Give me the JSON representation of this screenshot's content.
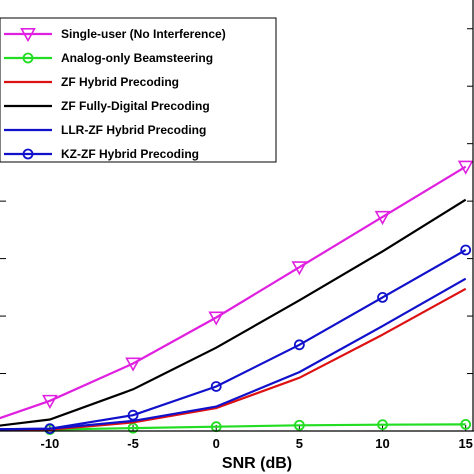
{
  "chart_data": {
    "type": "line",
    "xlabel": "SNR (dB)",
    "ylabel": "",
    "title": "",
    "xlim": [
      -13,
      15.5
    ],
    "ylim": [
      0,
      15
    ],
    "xticks": [
      -10,
      -5,
      0,
      5,
      10,
      15
    ],
    "xtick_labels": [
      "-10",
      "-5",
      "0",
      "5",
      "10",
      "15"
    ],
    "ytick_values": [
      2,
      4,
      6,
      8,
      10,
      12,
      14
    ],
    "grid": false,
    "legend_position": "top-left",
    "x": [
      -15,
      -10,
      -5,
      0,
      5,
      10,
      15
    ],
    "series": [
      {
        "name": "Single-user (No Interference)",
        "color": "#e020e0",
        "marker": "triangle-down",
        "values": [
          0.05,
          1.05,
          2.35,
          3.95,
          5.7,
          7.45,
          9.2
        ]
      },
      {
        "name": "Analog-only Beamsteering",
        "color": "#22dd22",
        "marker": "circle",
        "values": [
          0.05,
          0.05,
          0.1,
          0.15,
          0.2,
          0.22,
          0.23
        ]
      },
      {
        "name": "ZF Hybrid Precoding",
        "color": "#dd1111",
        "marker": "none",
        "values": [
          0.05,
          0.05,
          0.3,
          0.8,
          1.85,
          3.35,
          4.95
        ]
      },
      {
        "name": "ZF Fully-Digital Precoding",
        "color": "#000000",
        "marker": "none",
        "values": [
          0.05,
          0.4,
          1.45,
          2.9,
          4.55,
          6.25,
          8.05
        ]
      },
      {
        "name": "LLR-ZF Hybrid Precoding",
        "color": "#1111cc",
        "marker": "none",
        "values": [
          0.05,
          0.08,
          0.35,
          0.85,
          2.05,
          3.65,
          5.3
        ]
      },
      {
        "name": "KZ-ZF Hybrid Precoding",
        "color": "#1111cc",
        "marker": "circle",
        "values": [
          0.05,
          0.08,
          0.55,
          1.55,
          3.0,
          4.65,
          6.3
        ]
      }
    ]
  }
}
